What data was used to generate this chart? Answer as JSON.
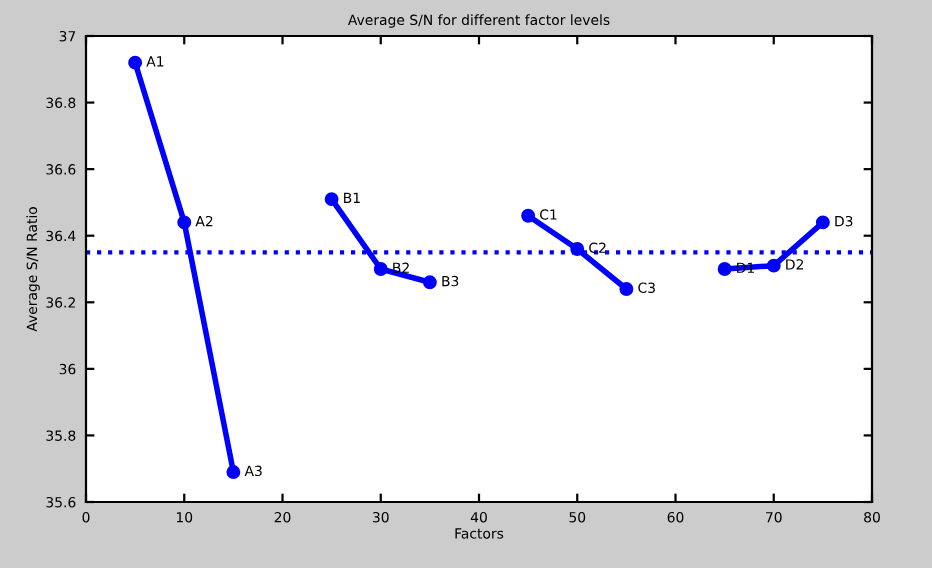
{
  "chart_data": {
    "type": "line",
    "title": "Average S/N for different factor levels",
    "xlabel": "Factors",
    "ylabel": "Average S/N Ratio",
    "xlim": [
      0,
      80
    ],
    "xticks": [
      0,
      10,
      20,
      30,
      40,
      50,
      60,
      70,
      80
    ],
    "ylim": [
      35.6,
      37
    ],
    "yticks": [
      35.6,
      35.8,
      36,
      36.2,
      36.4,
      36.6,
      36.8,
      37
    ],
    "series": [
      {
        "color": "#0000ff",
        "x": [
          5,
          10,
          15
        ],
        "values": [
          36.92,
          36.44,
          35.69
        ]
      },
      {
        "color": "#0000ff",
        "x": [
          25,
          30,
          35
        ],
        "values": [
          36.51,
          36.3,
          36.26
        ]
      },
      {
        "color": "#0000ff",
        "x": [
          45,
          50,
          55
        ],
        "values": [
          36.46,
          36.36,
          36.24
        ]
      },
      {
        "color": "#0000ff",
        "x": [
          65,
          70,
          75
        ],
        "values": [
          36.3,
          36.31,
          36.44
        ]
      }
    ],
    "ref_lines": [
      {
        "axis": "y",
        "value": 36.35,
        "color": "#0000ff",
        "line_style": "dotted"
      }
    ],
    "annotations": [
      {
        "text": "A1",
        "x": 5,
        "y": 36.92
      },
      {
        "text": "A2",
        "x": 10,
        "y": 36.44
      },
      {
        "text": "A3",
        "x": 15,
        "y": 35.69
      },
      {
        "text": "B1",
        "x": 25,
        "y": 36.51
      },
      {
        "text": "B2",
        "x": 30,
        "y": 36.3
      },
      {
        "text": "B3",
        "x": 35,
        "y": 36.26
      },
      {
        "text": "C1",
        "x": 45,
        "y": 36.46
      },
      {
        "text": "C2",
        "x": 50,
        "y": 36.36
      },
      {
        "text": "C3",
        "x": 55,
        "y": 36.24
      },
      {
        "text": "D1",
        "x": 65,
        "y": 36.3
      },
      {
        "text": "D2",
        "x": 70,
        "y": 36.31
      },
      {
        "text": "D3",
        "x": 75,
        "y": 36.44
      }
    ],
    "marker": "circle",
    "line_style": "solid",
    "grid": false,
    "legend": false
  }
}
